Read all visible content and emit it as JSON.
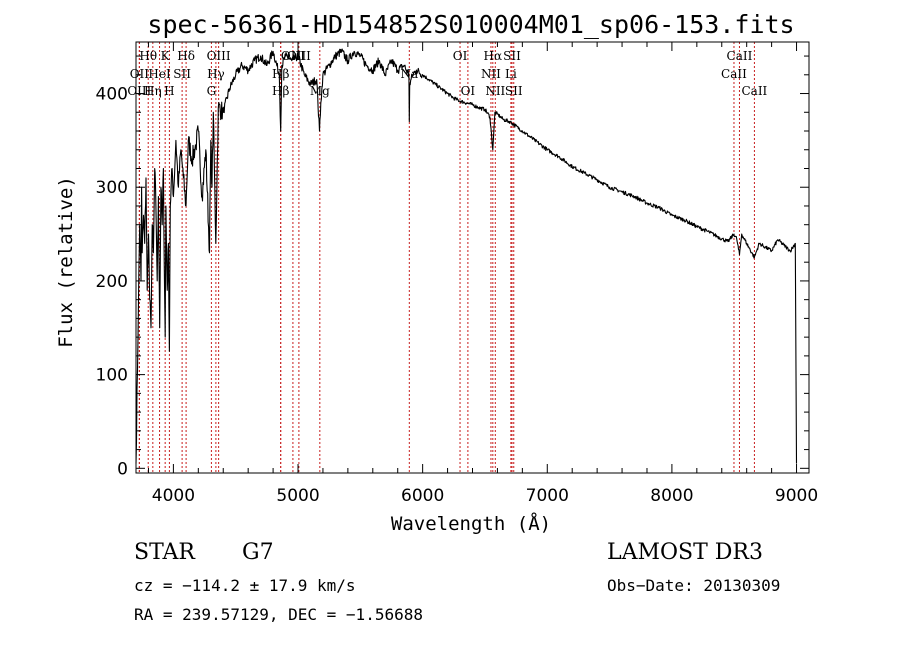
{
  "chart_data": {
    "type": "line",
    "title": "spec-56361-HD154852S010004M01_sp06-153.fits",
    "xlabel": "Wavelength (Å)",
    "ylabel": "Flux (relative)",
    "xlim": [
      3700,
      9100
    ],
    "ylim": [
      -5,
      455
    ],
    "x_ticks": [
      4000,
      5000,
      6000,
      7000,
      8000,
      9000
    ],
    "y_ticks": [
      0,
      100,
      200,
      300,
      400
    ],
    "series": [
      {
        "name": "flux",
        "x": [
          3700,
          3720,
          3730,
          3740,
          3745,
          3750,
          3760,
          3770,
          3780,
          3790,
          3800,
          3810,
          3820,
          3830,
          3840,
          3850,
          3860,
          3870,
          3880,
          3890,
          3900,
          3910,
          3920,
          3930,
          3934,
          3940,
          3950,
          3960,
          3968,
          3975,
          3990,
          4000,
          4020,
          4040,
          4060,
          4080,
          4101,
          4120,
          4150,
          4180,
          4200,
          4230,
          4260,
          4290,
          4300,
          4310,
          4320,
          4340,
          4360,
          4400,
          4450,
          4500,
          4550,
          4600,
          4650,
          4700,
          4750,
          4800,
          4850,
          4861,
          4870,
          4900,
          4950,
          5000,
          5050,
          5100,
          5150,
          5172,
          5183,
          5200,
          5250,
          5300,
          5350,
          5400,
          5450,
          5500,
          5550,
          5600,
          5650,
          5700,
          5750,
          5800,
          5850,
          5890,
          5893,
          5896,
          5920,
          5950,
          6000,
          6050,
          6100,
          6150,
          6200,
          6250,
          6300,
          6350,
          6400,
          6450,
          6500,
          6540,
          6563,
          6580,
          6600,
          6650,
          6700,
          6800,
          6900,
          7000,
          7100,
          7200,
          7300,
          7400,
          7500,
          7600,
          7700,
          7800,
          7900,
          8000,
          8100,
          8200,
          8300,
          8400,
          8450,
          8498,
          8520,
          8542,
          8560,
          8600,
          8662,
          8700,
          8750,
          8800,
          8850,
          8900,
          8950,
          8990,
          9000
        ],
        "y": [
          5,
          180,
          260,
          200,
          300,
          230,
          270,
          240,
          310,
          190,
          250,
          180,
          150,
          260,
          230,
          320,
          280,
          200,
          290,
          150,
          300,
          260,
          320,
          180,
          140,
          280,
          190,
          240,
          125,
          280,
          320,
          290,
          350,
          300,
          340,
          310,
          280,
          350,
          330,
          345,
          360,
          290,
          340,
          230,
          350,
          300,
          380,
          240,
          385,
          380,
          405,
          420,
          430,
          425,
          435,
          440,
          430,
          445,
          420,
          360,
          430,
          440,
          435,
          440,
          420,
          410,
          415,
          360,
          390,
          420,
          430,
          440,
          445,
          435,
          445,
          440,
          430,
          425,
          435,
          420,
          435,
          425,
          430,
          420,
          370,
          410,
          420,
          425,
          420,
          415,
          410,
          405,
          400,
          395,
          392,
          390,
          388,
          385,
          383,
          375,
          340,
          380,
          378,
          372,
          370,
          360,
          350,
          340,
          332,
          322,
          315,
          308,
          300,
          295,
          290,
          283,
          278,
          270,
          265,
          258,
          252,
          245,
          242,
          250,
          245,
          228,
          250,
          240,
          225,
          240,
          236,
          232,
          244,
          238,
          232,
          240,
          5
        ]
      }
    ],
    "line_markers": [
      {
        "label": "Hθ",
        "wavelength": 3798,
        "row": 0
      },
      {
        "label": "K",
        "wavelength": 3934,
        "row": 0
      },
      {
        "label": "Hδ",
        "wavelength": 4102,
        "row": 0
      },
      {
        "label": "OIII",
        "wavelength": 4363,
        "row": 0
      },
      {
        "label": "OIII",
        "wavelength": 4959,
        "row": 0
      },
      {
        "label": "OIII",
        "wavelength": 5007,
        "row": 0
      },
      {
        "label": "OI",
        "wavelength": 6300,
        "row": 0
      },
      {
        "label": "Hα",
        "wavelength": 6563,
        "row": 0
      },
      {
        "label": "SII",
        "wavelength": 6717,
        "row": 0
      },
      {
        "label": "CaII",
        "wavelength": 8542,
        "row": 0
      },
      {
        "label": "OII",
        "wavelength": 3727,
        "row": 1
      },
      {
        "label": "HeI",
        "wavelength": 3889,
        "row": 1
      },
      {
        "label": "SII",
        "wavelength": 4070,
        "row": 1
      },
      {
        "label": "Hγ",
        "wavelength": 4341,
        "row": 1
      },
      {
        "label": "Hβ",
        "wavelength": 4861,
        "row": 1
      },
      {
        "label": "Na",
        "wavelength": 5893,
        "row": 1
      },
      {
        "label": "NII",
        "wavelength": 6548,
        "row": 1
      },
      {
        "label": "Li",
        "wavelength": 6708,
        "row": 1
      },
      {
        "label": "CaII",
        "wavelength": 8498,
        "row": 1
      },
      {
        "label": "OIII",
        "wavelength": 3727,
        "row": 2
      },
      {
        "label": "Hη",
        "wavelength": 3835,
        "row": 2
      },
      {
        "label": "H",
        "wavelength": 3968,
        "row": 2
      },
      {
        "label": "G",
        "wavelength": 4305,
        "row": 2
      },
      {
        "label": "Hβ",
        "wavelength": 4861,
        "row": 2
      },
      {
        "label": "Mg",
        "wavelength": 5175,
        "row": 2
      },
      {
        "label": "OI",
        "wavelength": 6363,
        "row": 2
      },
      {
        "label": "NII",
        "wavelength": 6583,
        "row": 2
      },
      {
        "label": "SII",
        "wavelength": 6731,
        "row": 2
      },
      {
        "label": "CaII",
        "wavelength": 8662,
        "row": 2
      }
    ],
    "line_marker_color": "#c81e1e",
    "grid": false
  },
  "info": {
    "object_class": "STAR",
    "subclass": "G7",
    "survey": "LAMOST DR3",
    "cz": "cz = −114.2 ± 17.9 km/s",
    "obs_date": "Obs−Date: 20130309",
    "coords": "RA = 239.57129, DEC =  −1.56688"
  }
}
